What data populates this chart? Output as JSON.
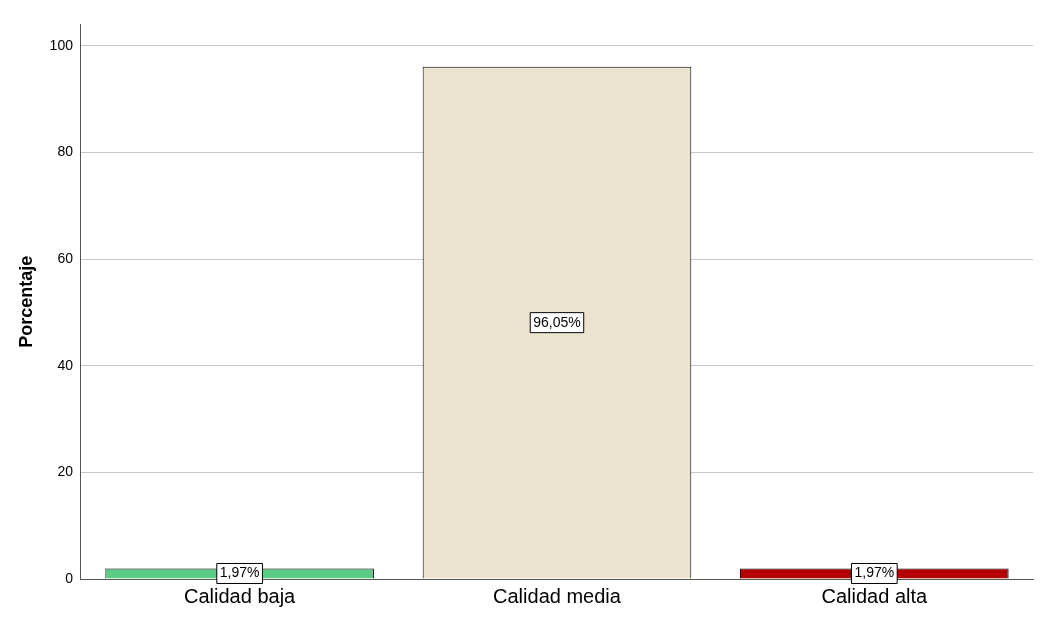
{
  "chart_data": {
    "type": "bar",
    "ylabel": "Porcentaje",
    "categories": [
      "Calidad baja",
      "Calidad media",
      "Calidad alta"
    ],
    "values": [
      1.97,
      96.05,
      1.97
    ],
    "value_labels": [
      "1,97%",
      "96,05%",
      "1,97%"
    ],
    "colors": [
      "#5ccc85",
      "#ebe3cd",
      "#b30000"
    ],
    "ylim": [
      0,
      104
    ],
    "yticks": [
      0,
      20,
      40,
      60,
      80,
      100
    ],
    "grid": "y",
    "legend": false
  }
}
